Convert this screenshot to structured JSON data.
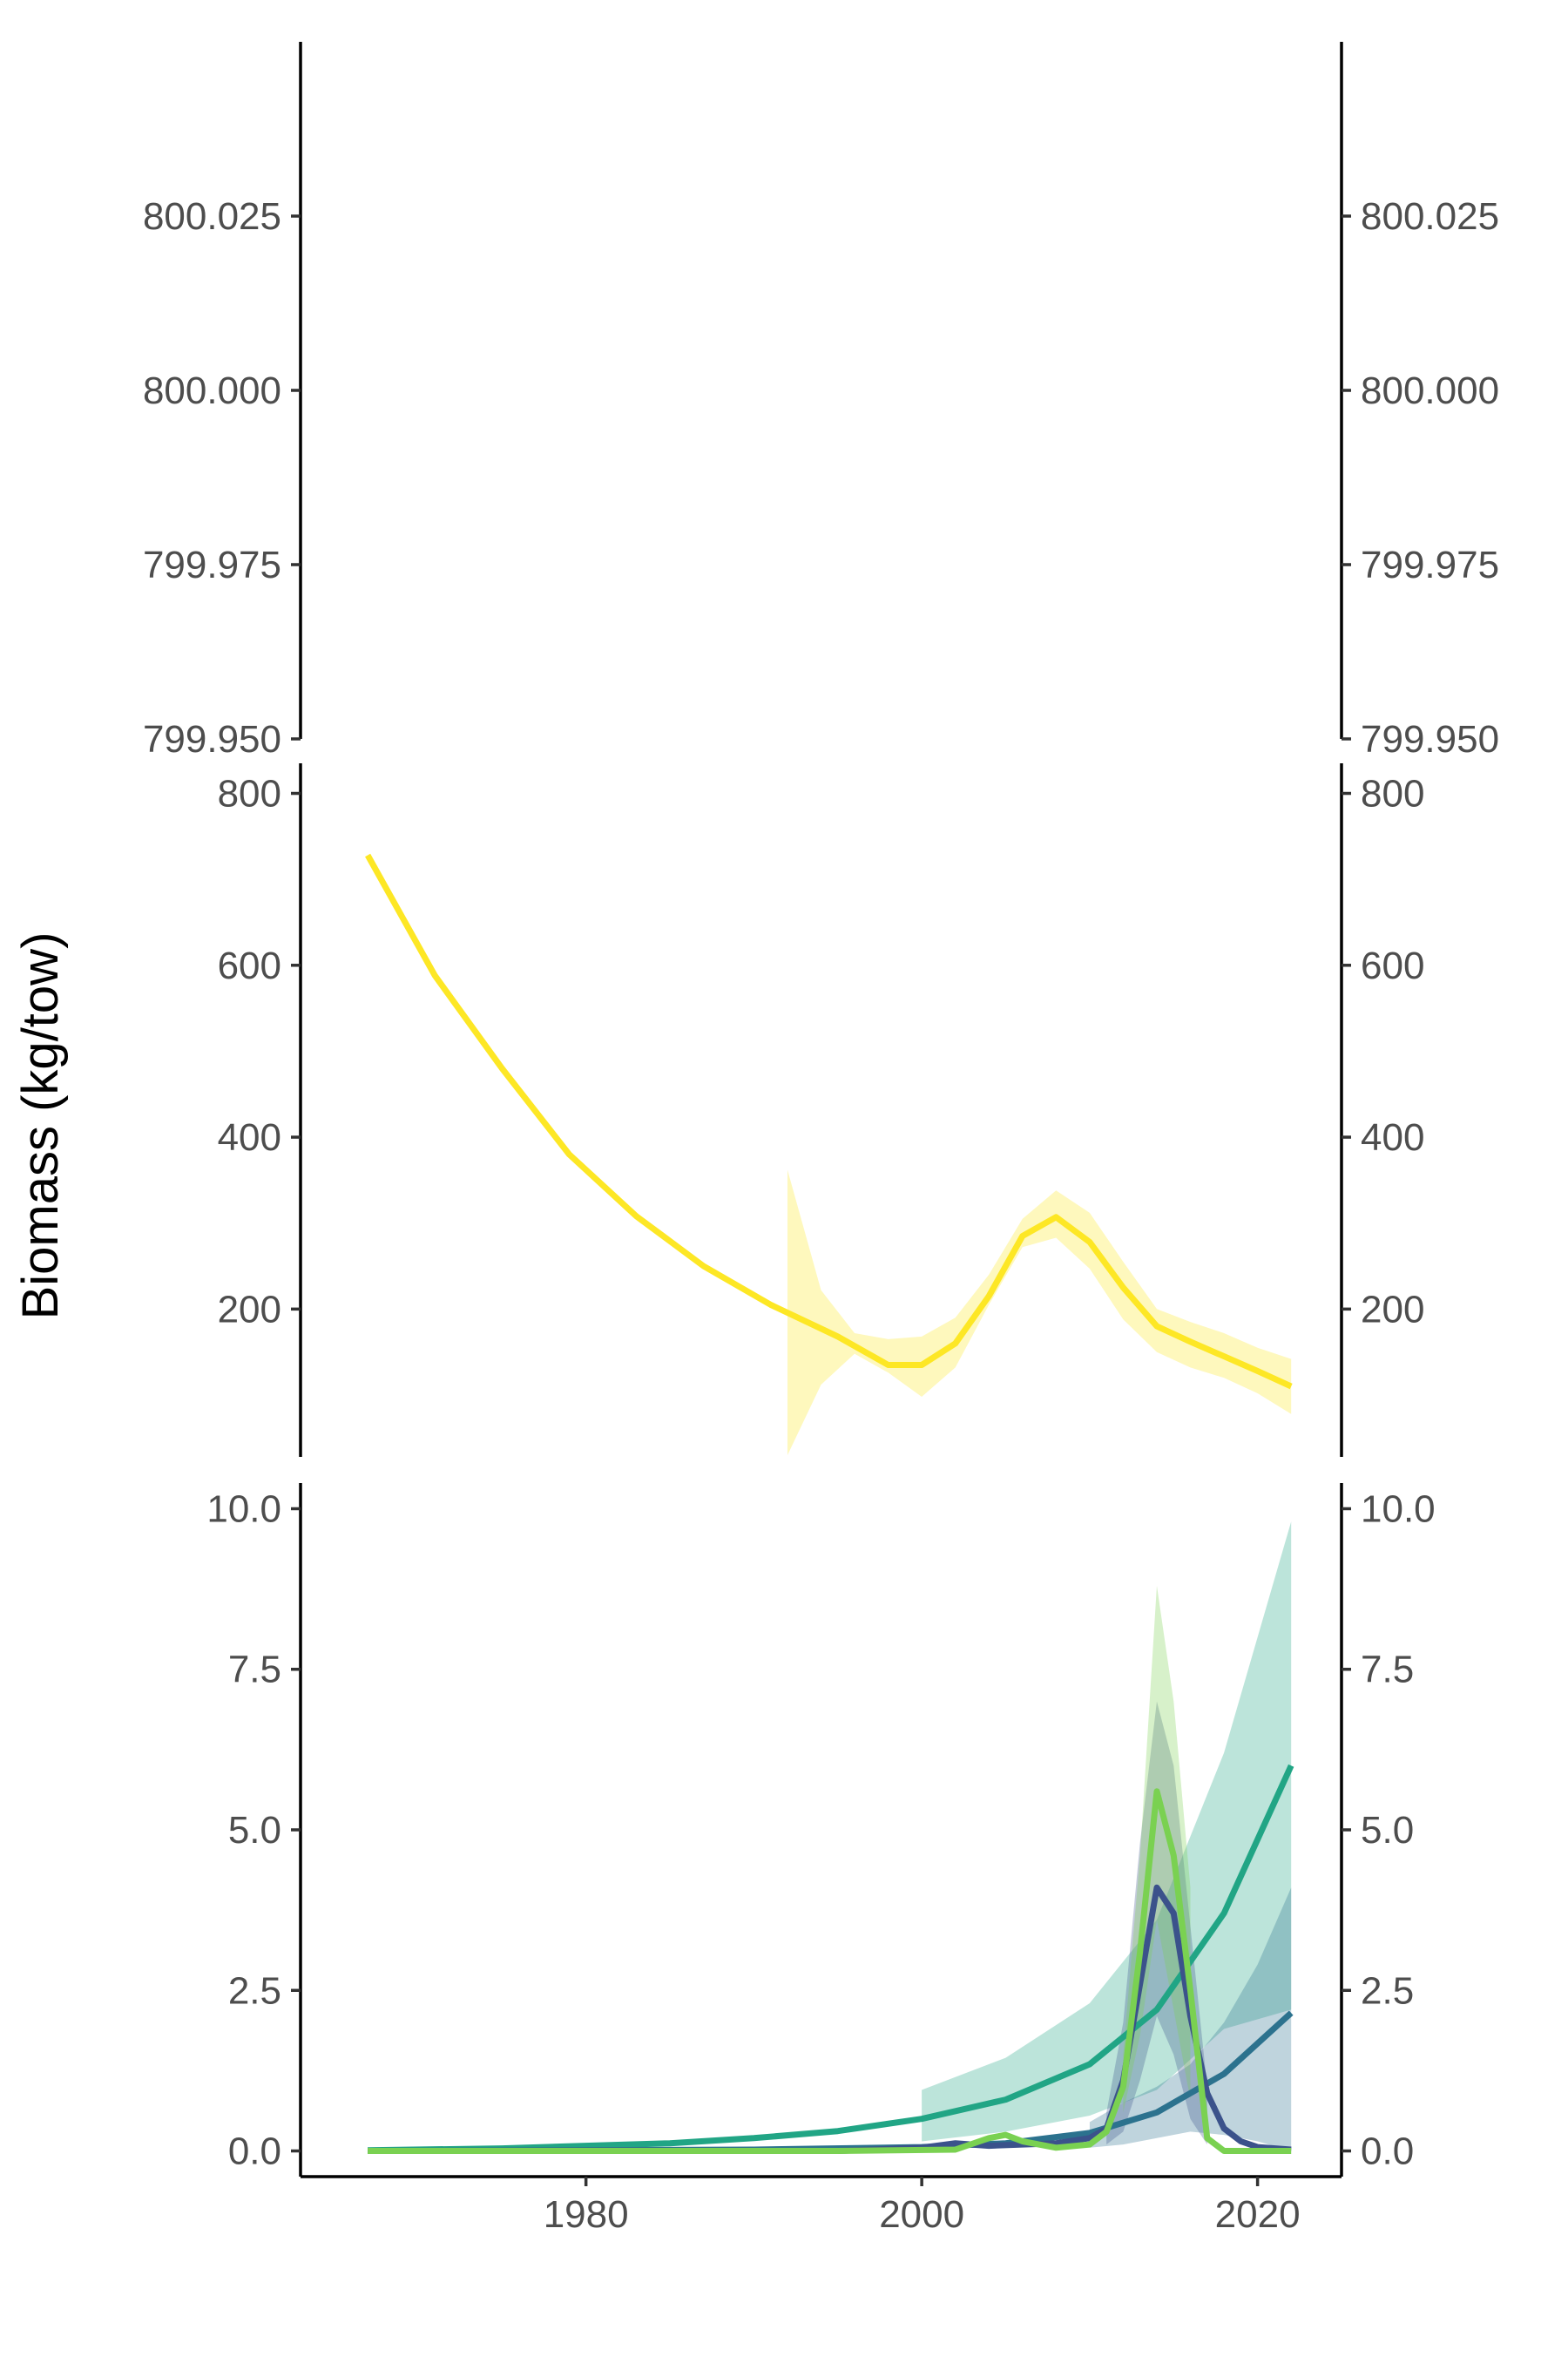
{
  "chart_data": {
    "type": "line",
    "ylabel": "Biomass (kg/tow)",
    "xlabel": "",
    "x_ticks": [
      1980,
      2000,
      2020
    ],
    "xlim": [
      1963,
      2025
    ],
    "panels": [
      {
        "ylim": [
          799.95,
          800.05
        ],
        "y_ticks": [
          "799.950",
          "799.975",
          "800.000",
          "800.025"
        ],
        "y_tick_values": [
          799.95,
          799.975,
          800.0,
          800.025
        ],
        "series": []
      },
      {
        "ylim": [
          28,
          835
        ],
        "y_ticks": [
          "200",
          "400",
          "600",
          "800"
        ],
        "y_tick_values": [
          200,
          400,
          600,
          800
        ],
        "series": [
          {
            "color": "#FDE725",
            "fill": "#FDE725",
            "x": [
              1967,
              1971,
              1975,
              1979,
              1983,
              1987,
              1991,
              1995,
              1998,
              2000,
              2002,
              2004,
              2006,
              2008,
              2010,
              2012,
              2014,
              2016,
              2018,
              2020,
              2022
            ],
            "y": [
              728,
              588,
              480,
              380,
              308,
              250,
              205,
              168,
              135,
              135,
              160,
              215,
              285,
              307,
              278,
              225,
              180,
              162,
              145,
              128,
              110
            ],
            "band_x": [
              1992,
              1994,
              1996,
              1998,
              2000,
              2002,
              2004,
              2006,
              2008,
              2010,
              2012,
              2014,
              2016,
              2018,
              2020,
              2022
            ],
            "band_lower": [
              30,
              112,
              148,
              126,
              98,
              132,
              205,
              272,
              283,
              247,
              188,
              150,
              132,
              120,
              102,
              78
            ],
            "band_upper": [
              362,
              222,
              172,
              165,
              168,
              190,
              240,
              305,
              338,
              312,
              255,
              200,
              185,
              172,
              155,
              142
            ]
          }
        ]
      },
      {
        "ylim": [
          -0.4,
          10.4
        ],
        "y_ticks": [
          "0.0",
          "2.5",
          "5.0",
          "7.5",
          "10.0"
        ],
        "y_tick_values": [
          0,
          2.5,
          5.0,
          7.5,
          10.0
        ],
        "series": [
          {
            "color": "#21A585",
            "fill": "#21A585",
            "x": [
              1967,
              1975,
              1985,
              1990,
              1995,
              2000,
              2005,
              2010,
              2014,
              2018,
              2022
            ],
            "y": [
              0.01,
              0.04,
              0.12,
              0.2,
              0.31,
              0.5,
              0.8,
              1.35,
              2.2,
              3.7,
              6.0
            ],
            "band_x": [
              2000,
              2005,
              2010,
              2014,
              2018,
              2022
            ],
            "band_lower": [
              0.15,
              0.3,
              0.55,
              0.95,
              1.9,
              2.2
            ],
            "band_upper": [
              0.95,
              1.45,
              2.3,
              3.6,
              6.2,
              9.8
            ]
          },
          {
            "color": "#2C728E",
            "fill": "#2C728E",
            "x": [
              1967,
              1990,
              2000,
              2005,
              2010,
              2014,
              2018,
              2022
            ],
            "y": [
              0.0,
              0.02,
              0.06,
              0.12,
              0.28,
              0.6,
              1.2,
              2.15
            ],
            "band_x": [
              2010,
              2012,
              2014,
              2016,
              2018,
              2020,
              2022
            ],
            "band_lower": [
              0.05,
              0.1,
              0.2,
              0.3,
              0.25,
              0.15,
              0.0
            ],
            "band_upper": [
              0.45,
              0.75,
              1.0,
              1.35,
              2.0,
              2.9,
              4.1
            ]
          },
          {
            "color": "#3B528B",
            "fill": "#3B528B",
            "x": [
              1967,
              1995,
              2000,
              2002,
              2004,
              2006,
              2008,
              2010,
              2011,
              2012,
              2013,
              2014,
              2015,
              2016,
              2017,
              2018,
              2019,
              2020,
              2022
            ],
            "y": [
              0.0,
              0.0,
              0.05,
              0.12,
              0.08,
              0.1,
              0.12,
              0.2,
              0.35,
              1.1,
              2.6,
              4.1,
              3.7,
              2.1,
              0.9,
              0.35,
              0.15,
              0.06,
              0.02
            ],
            "band_x": [
              2011,
              2012,
              2013,
              2014,
              2015,
              2016,
              2017
            ],
            "band_lower": [
              0.1,
              0.3,
              1.1,
              2.1,
              1.5,
              0.5,
              0.1
            ],
            "band_upper": [
              0.6,
              2.0,
              4.8,
              7.0,
              6.0,
              3.5,
              1.0
            ]
          },
          {
            "color": "#7AD151",
            "fill": "#7AD151",
            "x": [
              1967,
              1995,
              2002,
              2004,
              2005,
              2006,
              2008,
              2010,
              2011,
              2012,
              2013,
              2014,
              2015,
              2016,
              2017,
              2018,
              2020,
              2022
            ],
            "y": [
              0.0,
              0.0,
              0.02,
              0.2,
              0.25,
              0.15,
              0.05,
              0.1,
              0.3,
              1.0,
              3.1,
              5.6,
              4.6,
              2.5,
              0.2,
              0.0,
              0.0,
              0.0
            ],
            "band_x": [
              2012,
              2013,
              2014,
              2015,
              2016
            ],
            "band_lower": [
              0.6,
              1.8,
              3.6,
              2.2,
              0.8
            ],
            "band_upper": [
              1.5,
              4.6,
              8.8,
              7.0,
              4.1
            ]
          }
        ]
      }
    ]
  }
}
